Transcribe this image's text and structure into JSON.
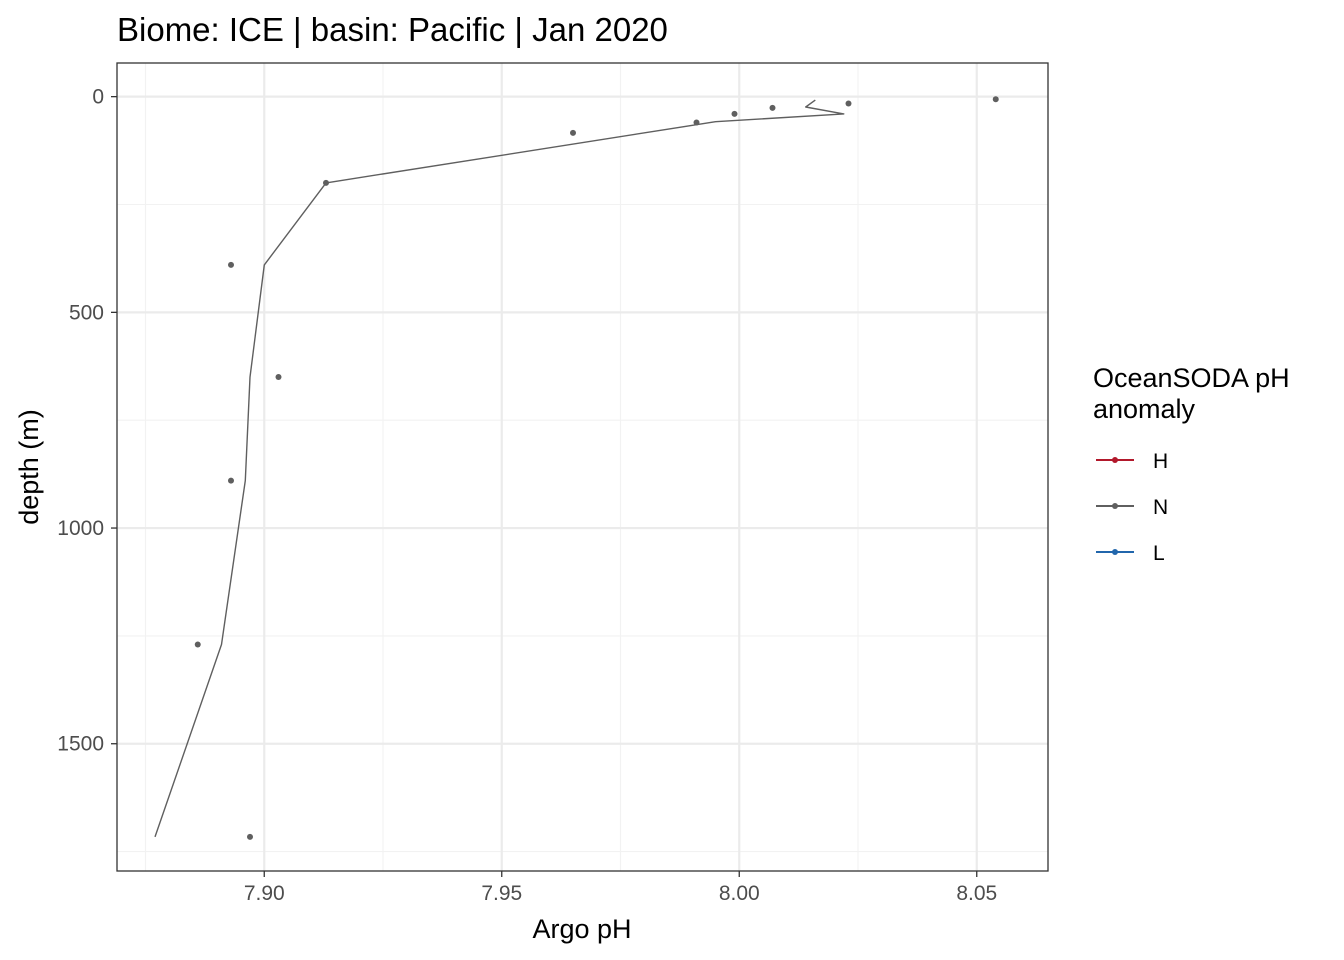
{
  "chart_data": {
    "type": "line",
    "title": "Biome: ICE | basin: Pacific  | Jan 2020",
    "xlabel": "Argo pH",
    "ylabel": "depth (m)",
    "xlim": [
      7.869,
      8.065
    ],
    "ylim": [
      1795,
      -78
    ],
    "y_reversed": true,
    "grid": true,
    "x_ticks": [
      7.9,
      7.95,
      8.0,
      8.05
    ],
    "x_tick_labels": [
      "7.90",
      "7.95",
      "8.00",
      "8.05"
    ],
    "y_ticks": [
      0,
      500,
      1000,
      1500
    ],
    "y_tick_labels": [
      "0",
      "500",
      "1000",
      "1500"
    ],
    "legend": {
      "title_lines": [
        "OceanSODA pH",
        "anomaly"
      ],
      "position": "right",
      "entries": [
        {
          "label": "H",
          "color": "#b2182b"
        },
        {
          "label": "N",
          "color": "#5f5f5f"
        },
        {
          "label": "L",
          "color": "#2166ac"
        }
      ]
    },
    "series": [
      {
        "name": "N",
        "color": "#5f5f5f",
        "line": {
          "x": [
            8.016,
            8.014,
            8.022,
            7.995,
            7.913,
            7.9,
            7.897,
            7.896,
            7.891,
            7.877
          ],
          "y": [
            8,
            24,
            40,
            58,
            200,
            390,
            650,
            890,
            1270,
            1716
          ]
        },
        "points": {
          "x": [
            8.054,
            8.023,
            8.007,
            7.999,
            7.991,
            7.965,
            7.913,
            7.893,
            7.903,
            7.893,
            7.886,
            7.897
          ],
          "y": [
            6,
            16,
            26,
            40,
            60,
            84,
            200,
            390,
            650,
            890,
            1270,
            1716
          ]
        }
      }
    ]
  }
}
